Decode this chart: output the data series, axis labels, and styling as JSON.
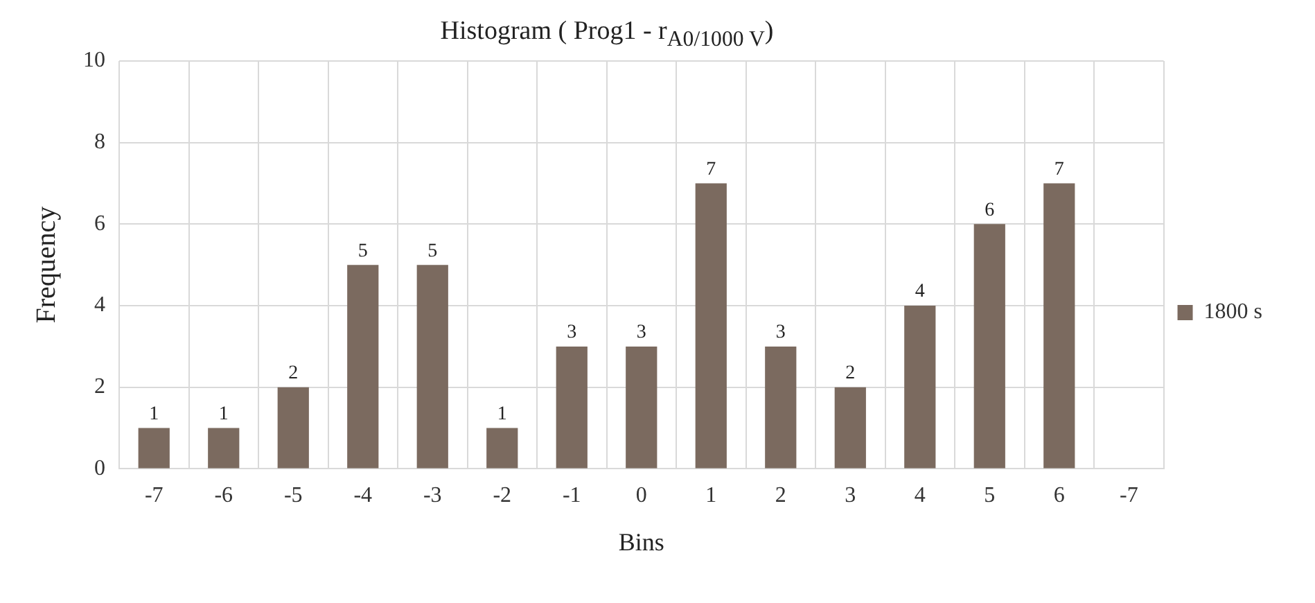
{
  "chart_data": {
    "type": "bar",
    "title": "Histogram ( Prog1 - r$_{A0/1000 V}$)",
    "xlabel": "Bins",
    "ylabel": "Frequency",
    "categories": [
      "-7",
      "-6",
      "-5",
      "-4",
      "-3",
      "-2",
      "-1",
      "0",
      "1",
      "2",
      "3",
      "4",
      "5",
      "6",
      "-7"
    ],
    "series": [
      {
        "name": "1800 s",
        "color": "#7b6a5f",
        "values": [
          1,
          1,
          2,
          5,
          5,
          1,
          3,
          3,
          7,
          3,
          2,
          4,
          6,
          7,
          null
        ]
      }
    ],
    "ylim": [
      0,
      10
    ],
    "yticks": [
      0,
      2,
      4,
      6,
      8,
      10
    ],
    "grid": true,
    "legend": "right",
    "data_labels": true
  }
}
